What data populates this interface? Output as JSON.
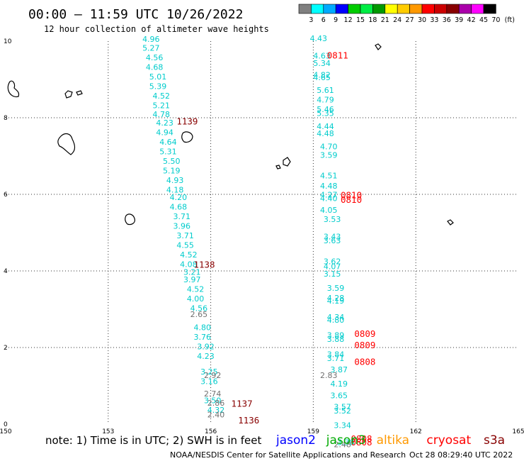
{
  "header": {
    "title": "00:00 – 11:59 UTC 10/26/2022",
    "subtitle": "12 hour collection of altimeter wave heights"
  },
  "legend": {
    "labels": [
      "3",
      "6",
      "9",
      "12",
      "15",
      "18",
      "21",
      "24",
      "27",
      "30",
      "33",
      "36",
      "39",
      "42",
      "45",
      "70"
    ],
    "unit": "(ft)",
    "colors": [
      "#808080",
      "#00ffff",
      "#00aaff",
      "#0000ff",
      "#00cc00",
      "#00ee44",
      "#009900",
      "#ffff00",
      "#ffcc00",
      "#ff9900",
      "#ff0000",
      "#cc0000",
      "#880000",
      "#aa00aa",
      "#ff00ff",
      "#000000"
    ]
  },
  "footer": {
    "note": "note: 1) Time is in UTC; 2) SWH is in feet",
    "satellites": [
      {
        "name": "jason2",
        "color": "#0000ff"
      },
      {
        "name": "jason3",
        "color": "#00aa00"
      },
      {
        "name": "altika",
        "color": "#ff9900"
      },
      {
        "name": "cryosat",
        "color": "#ff0000"
      },
      {
        "name": "s3a",
        "color": "#880000"
      }
    ],
    "credit": "NOAA/NESDIS Center for Satellite Applications and Research",
    "timestamp": "Oct 28 08:29:40 UTC 2022"
  },
  "chart_data": {
    "type": "scatter",
    "xlim": [
      150,
      165
    ],
    "ylim": [
      0,
      10
    ],
    "x_ticks": [
      150,
      153,
      156,
      159,
      162,
      165
    ],
    "y_ticks": [
      0,
      2,
      4,
      6,
      8,
      10
    ],
    "grid": true,
    "series": [
      {
        "name": "jason3",
        "color": "#00cccc",
        "points": [
          [
            154.0,
            9.98,
            "4.96"
          ],
          [
            154.0,
            9.75,
            "5.27"
          ],
          [
            154.1,
            9.5,
            "4.56"
          ],
          [
            154.1,
            9.25,
            "4.68"
          ],
          [
            154.2,
            9.0,
            "5.01"
          ],
          [
            154.2,
            8.75,
            "5.39"
          ],
          [
            154.3,
            8.5,
            "4.52"
          ],
          [
            154.3,
            8.25,
            "5.21"
          ],
          [
            154.3,
            8.02,
            "4.78"
          ],
          [
            154.4,
            7.8,
            "4.23"
          ],
          [
            154.4,
            7.55,
            "4.94"
          ],
          [
            154.5,
            7.3,
            "4.64"
          ],
          [
            154.5,
            7.05,
            "5.31"
          ],
          [
            154.6,
            6.8,
            "5.50"
          ],
          [
            154.6,
            6.55,
            "5.19"
          ],
          [
            154.7,
            6.3,
            "4.93"
          ],
          [
            154.7,
            6.05,
            "4.18"
          ],
          [
            154.8,
            5.85,
            "4.20"
          ],
          [
            154.8,
            5.6,
            "4.68"
          ],
          [
            154.9,
            5.35,
            "3.71"
          ],
          [
            154.9,
            5.1,
            "3.96"
          ],
          [
            155.0,
            4.85,
            "3.71"
          ],
          [
            155.0,
            4.6,
            "4.55"
          ],
          [
            155.1,
            4.35,
            "4.52"
          ],
          [
            155.1,
            4.1,
            "4.08"
          ],
          [
            155.2,
            3.9,
            "3.21"
          ],
          [
            155.2,
            3.7,
            "3.97"
          ],
          [
            155.3,
            3.45,
            "4.52"
          ],
          [
            155.3,
            3.2,
            "4.00"
          ],
          [
            155.4,
            2.95,
            "4.56"
          ],
          [
            155.5,
            2.45,
            "4.80"
          ],
          [
            155.5,
            2.2,
            "3.76"
          ],
          [
            155.6,
            1.95,
            "3.92"
          ],
          [
            155.6,
            1.7,
            "4.23"
          ],
          [
            155.7,
            1.3,
            "3.25"
          ],
          [
            155.7,
            1.05,
            "3.16"
          ],
          [
            155.8,
            0.55,
            "3.50"
          ],
          [
            155.9,
            0.3,
            "4.32"
          ],
          [
            158.9,
            10.0,
            "4.43"
          ],
          [
            159.0,
            9.55,
            "4.63"
          ],
          [
            159.0,
            9.35,
            "5.34"
          ],
          [
            159.0,
            9.05,
            "4.82"
          ],
          [
            159.0,
            8.98,
            "4.65"
          ],
          [
            159.1,
            8.65,
            "5.61"
          ],
          [
            159.1,
            8.4,
            "4.79"
          ],
          [
            159.1,
            8.15,
            "5.46"
          ],
          [
            159.1,
            8.05,
            "5.35"
          ],
          [
            159.1,
            7.7,
            "4.44"
          ],
          [
            159.1,
            7.52,
            "4.48"
          ],
          [
            159.2,
            7.18,
            "4.70"
          ],
          [
            159.2,
            6.95,
            "3.59"
          ],
          [
            159.2,
            6.42,
            "4.51"
          ],
          [
            159.2,
            6.15,
            "4.48"
          ],
          [
            159.2,
            5.92,
            "4.27"
          ],
          [
            159.2,
            5.82,
            "4.40"
          ],
          [
            159.2,
            5.52,
            "4.05"
          ],
          [
            159.3,
            5.28,
            "3.53"
          ],
          [
            159.3,
            4.82,
            "3.43"
          ],
          [
            159.3,
            4.72,
            "3.63"
          ],
          [
            159.3,
            4.18,
            "3.62"
          ],
          [
            159.3,
            4.05,
            "4.07"
          ],
          [
            159.3,
            3.85,
            "3.15"
          ],
          [
            159.4,
            3.48,
            "3.59"
          ],
          [
            159.4,
            3.22,
            "4.28"
          ],
          [
            159.4,
            3.15,
            "4.19"
          ],
          [
            159.4,
            2.72,
            "4.34"
          ],
          [
            159.4,
            2.65,
            "4.80"
          ],
          [
            159.4,
            2.25,
            "3.89"
          ],
          [
            159.4,
            2.15,
            "3.88"
          ],
          [
            159.4,
            1.75,
            "3.84"
          ],
          [
            159.4,
            1.65,
            "3.71"
          ],
          [
            159.5,
            1.35,
            "3.87"
          ],
          [
            159.5,
            0.98,
            "4.19"
          ],
          [
            159.5,
            0.68,
            "3.65"
          ],
          [
            159.6,
            0.38,
            "3.57"
          ],
          [
            159.6,
            0.28,
            "3.52"
          ],
          [
            159.6,
            -0.1,
            "3.34"
          ],
          [
            159.7,
            -0.55,
            "3.38"
          ]
        ]
      },
      {
        "name": "altika",
        "color": "#707070",
        "points": [
          [
            155.4,
            2.8,
            "2.65"
          ],
          [
            155.8,
            1.2,
            "2.92"
          ],
          [
            155.8,
            0.72,
            "2.74"
          ],
          [
            155.9,
            0.48,
            "2.86"
          ],
          [
            155.9,
            0.18,
            "2.40"
          ],
          [
            159.2,
            1.2,
            "2.83"
          ],
          [
            159.6,
            -0.6,
            "2.48"
          ]
        ]
      },
      {
        "name": "s3a",
        "color": "#880000",
        "points": [
          [
            155.0,
            7.82,
            "1139"
          ],
          [
            155.5,
            4.08,
            "1138"
          ],
          [
            156.6,
            0.45,
            "1137"
          ],
          [
            156.8,
            0.02,
            "1136"
          ]
        ]
      },
      {
        "name": "cryosat",
        "color": "#ff0000",
        "points": [
          [
            159.4,
            9.55,
            "0811"
          ],
          [
            159.8,
            5.9,
            "0810"
          ],
          [
            159.8,
            5.78,
            "0810"
          ],
          [
            160.2,
            2.28,
            "0809"
          ],
          [
            160.2,
            1.98,
            "0809"
          ],
          [
            160.2,
            1.55,
            "0808"
          ],
          [
            160.1,
            -0.46,
            "0808"
          ],
          [
            160.1,
            -0.56,
            "0808"
          ]
        ]
      }
    ]
  }
}
